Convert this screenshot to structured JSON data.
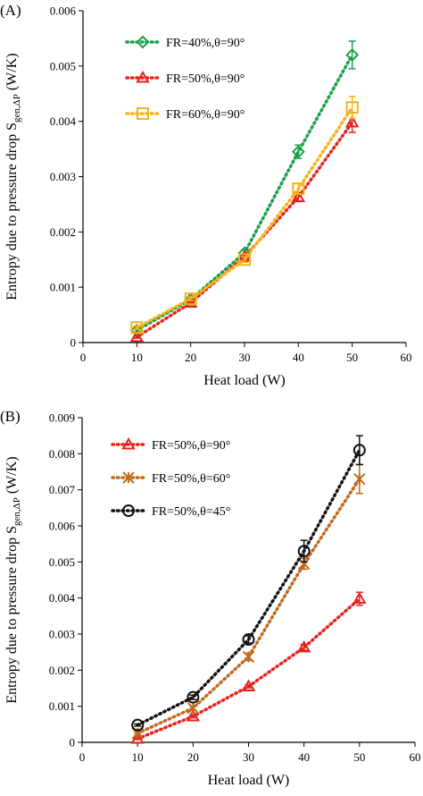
{
  "colors": {
    "green": "#1aa04a",
    "red": "#e8231f",
    "gold": "#f4b51b",
    "brown": "#c06a1e",
    "black": "#111111"
  },
  "chart_data": [
    {
      "panel_label": "(A)",
      "type": "line",
      "xlabel": "Heat load (W)",
      "ylabel_main": "Entropy due to pressure drop  S",
      "ylabel_sub": "gen,ΔP",
      "ylabel_unit": " (W/K)",
      "xlim": [
        0,
        60
      ],
      "ylim": [
        0,
        0.006
      ],
      "xticks": [
        "0",
        "10",
        "20",
        "30",
        "40",
        "50",
        "60"
      ],
      "yticks": [
        "0",
        "0.001",
        "0.002",
        "0.003",
        "0.004",
        "0.005",
        "0.006"
      ],
      "legend_position": "top-left",
      "series": [
        {
          "name": "FR=40%,θ=90°",
          "marker": "diamond",
          "color": "#1aa04a",
          "x": [
            10,
            20,
            30,
            40,
            50
          ],
          "values": [
            0.00022,
            0.00078,
            0.00162,
            0.00345,
            0.0052
          ],
          "errors": [
            3e-05,
            3e-05,
            5e-05,
            0.00012,
            0.00025
          ]
        },
        {
          "name": "FR=50%,θ=90°",
          "marker": "triangle",
          "color": "#e8231f",
          "x": [
            10,
            20,
            30,
            40,
            50
          ],
          "values": [
            0.0001,
            0.00072,
            0.00155,
            0.00263,
            0.00398
          ],
          "errors": [
            2e-05,
            4e-05,
            4e-05,
            8e-05,
            0.00018
          ]
        },
        {
          "name": "FR=60%,θ=90°",
          "marker": "square",
          "color": "#f4b51b",
          "x": [
            10,
            20,
            30,
            40,
            50
          ],
          "values": [
            0.00027,
            0.00079,
            0.0015,
            0.00278,
            0.00425
          ],
          "errors": [
            3e-05,
            3e-05,
            5e-05,
            0.0001,
            0.0002
          ]
        }
      ]
    },
    {
      "panel_label": "(B)",
      "type": "line",
      "xlabel": "Heat load (W)",
      "ylabel_main": "Entropy due to pressure drop  S",
      "ylabel_sub": "gen,ΔP",
      "ylabel_unit": " (W/K)",
      "xlim": [
        0,
        60
      ],
      "ylim": [
        0,
        0.009
      ],
      "xticks": [
        "0",
        "10",
        "20",
        "30",
        "40",
        "50",
        "60"
      ],
      "yticks": [
        "0",
        "0.001",
        "0.002",
        "0.003",
        "0.004",
        "0.005",
        "0.006",
        "0.007",
        "0.008",
        "0.009"
      ],
      "legend_position": "top-left",
      "series": [
        {
          "name": "FR=50%,θ=90°",
          "marker": "triangle",
          "color": "#e8231f",
          "x": [
            10,
            20,
            30,
            40,
            50
          ],
          "values": [
            0.0001,
            0.00072,
            0.00155,
            0.00263,
            0.00398
          ],
          "errors": [
            2e-05,
            4e-05,
            4e-05,
            8e-05,
            0.00018
          ]
        },
        {
          "name": "FR=50%,θ=60°",
          "marker": "star",
          "color": "#c06a1e",
          "x": [
            10,
            20,
            30,
            40,
            50
          ],
          "values": [
            0.00025,
            0.00095,
            0.00237,
            0.00495,
            0.0073
          ],
          "errors": [
            3e-05,
            5e-05,
            0.0001,
            0.00015,
            0.0004
          ]
        },
        {
          "name": "FR=50%,θ=45°",
          "marker": "circle",
          "color": "#111111",
          "x": [
            10,
            20,
            30,
            40,
            50
          ],
          "values": [
            0.00048,
            0.00125,
            0.00285,
            0.0053,
            0.0081
          ],
          "errors": [
            3e-05,
            6e-05,
            0.0001,
            0.0003,
            0.0004
          ]
        }
      ]
    }
  ]
}
